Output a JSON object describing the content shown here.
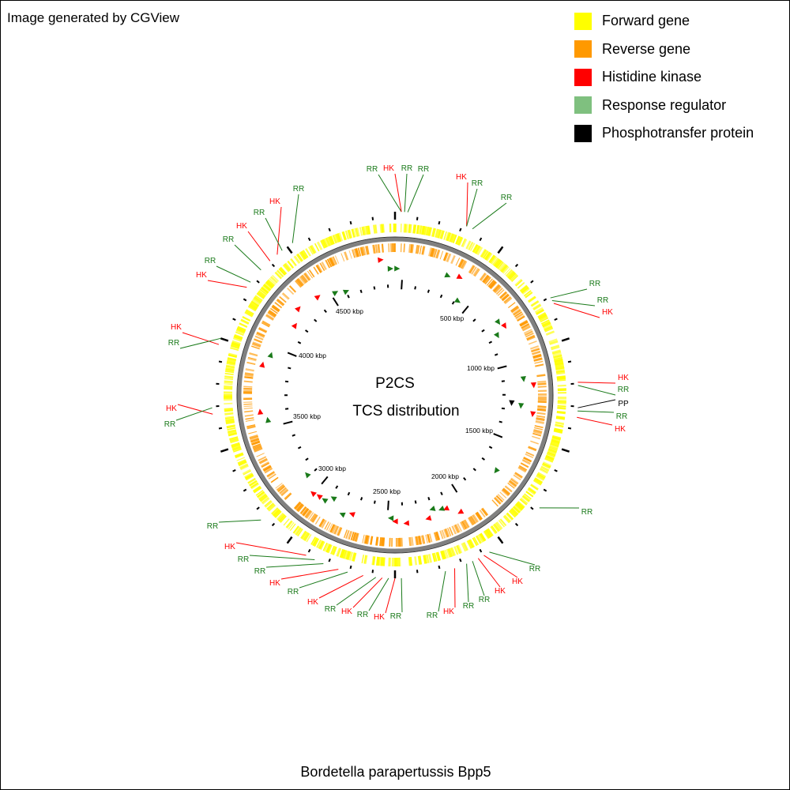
{
  "credit": "Image generated by CGView",
  "legend": [
    {
      "label": "Forward gene",
      "color": "#ffff00"
    },
    {
      "label": "Reverse gene",
      "color": "#ff9900"
    },
    {
      "label": "Histidine kinase",
      "color": "#ff0000"
    },
    {
      "label": "Response regulator",
      "color": "#7fc07f"
    },
    {
      "label": "Phosphotransfer protein",
      "color": "#000000"
    }
  ],
  "map": {
    "title_line1": "P2CS",
    "title_line2": "TCS distribution",
    "organism": "Bordetella parapertussis Bpp5",
    "kbp_labels": [
      "500 kbp",
      "1000 kbp",
      "1500 kbp",
      "2000 kbp",
      "2500 kbp",
      "3000 kbp",
      "3500 kbp",
      "4000 kbp",
      "4500 kbp"
    ],
    "feature_labels": [
      {
        "text": "RR",
        "type": "RR"
      },
      {
        "text": "HK",
        "type": "HK"
      },
      {
        "text": "RR",
        "type": "RR"
      },
      {
        "text": "RR",
        "type": "RR"
      },
      {
        "text": "HK",
        "type": "HK"
      },
      {
        "text": "RR",
        "type": "RR"
      },
      {
        "text": "RR",
        "type": "RR"
      },
      {
        "text": "RR",
        "type": "RR"
      },
      {
        "text": "RR",
        "type": "RR"
      },
      {
        "text": "HK",
        "type": "HK"
      },
      {
        "text": "HK",
        "type": "HK"
      },
      {
        "text": "RR",
        "type": "RR"
      },
      {
        "text": "PP",
        "type": "PP"
      },
      {
        "text": "RR",
        "type": "RR"
      },
      {
        "text": "HK",
        "type": "HK"
      },
      {
        "text": "RR",
        "type": "RR"
      },
      {
        "text": "RR",
        "type": "RR"
      },
      {
        "text": "HK",
        "type": "HK"
      },
      {
        "text": "HK",
        "type": "HK"
      },
      {
        "text": "RR",
        "type": "RR"
      },
      {
        "text": "RR",
        "type": "RR"
      },
      {
        "text": "HK",
        "type": "HK"
      },
      {
        "text": "RR",
        "type": "RR"
      },
      {
        "text": "RR",
        "type": "RR"
      },
      {
        "text": "HK",
        "type": "HK"
      },
      {
        "text": "RR",
        "type": "RR"
      },
      {
        "text": "HK",
        "type": "HK"
      },
      {
        "text": "RR",
        "type": "RR"
      },
      {
        "text": "HK",
        "type": "HK"
      },
      {
        "text": "RR",
        "type": "RR"
      },
      {
        "text": "HK",
        "type": "HK"
      },
      {
        "text": "RR",
        "type": "RR"
      },
      {
        "text": "RR",
        "type": "RR"
      },
      {
        "text": "HK",
        "type": "HK"
      },
      {
        "text": "RR",
        "type": "RR"
      },
      {
        "text": "HK",
        "type": "HK"
      },
      {
        "text": "RR",
        "type": "RR"
      },
      {
        "text": "HK",
        "type": "HK"
      },
      {
        "text": "RR",
        "type": "RR"
      },
      {
        "text": "HK",
        "type": "HK"
      },
      {
        "text": "RR",
        "type": "RR"
      },
      {
        "text": "RR",
        "type": "RR"
      },
      {
        "text": "HK",
        "type": "HK"
      },
      {
        "text": "HK",
        "type": "HK"
      },
      {
        "text": "RR",
        "type": "RR"
      },
      {
        "text": "RR",
        "type": "RR"
      }
    ]
  }
}
